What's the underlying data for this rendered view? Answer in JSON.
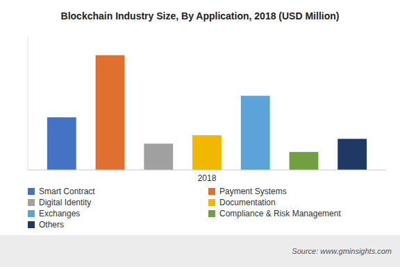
{
  "chart_data": {
    "type": "bar",
    "title": "Blockchain Industry Size, By Application, 2018 (USD Million)",
    "categories": [
      "2018"
    ],
    "series": [
      {
        "name": "Smart Contract",
        "color": "#4472C4",
        "values": [
          220
        ]
      },
      {
        "name": "Payment Systems",
        "color": "#E07030",
        "values": [
          480
        ]
      },
      {
        "name": "Digital Identity",
        "color": "#A0A0A0",
        "values": [
          110
        ]
      },
      {
        "name": "Documentation",
        "color": "#F0B800",
        "values": [
          145
        ]
      },
      {
        "name": "Exchanges",
        "color": "#5BA3D9",
        "values": [
          310
        ]
      },
      {
        "name": "Compliance & Risk Management",
        "color": "#70A040",
        "values": [
          75
        ]
      },
      {
        "name": "Others",
        "color": "#1F3864",
        "values": [
          130
        ]
      }
    ],
    "ylim": [
      0,
      560
    ],
    "tick_labels": "x",
    "grid": false,
    "legend": "bottom",
    "annotations": [
      "Source: www.gminsights.com"
    ]
  }
}
